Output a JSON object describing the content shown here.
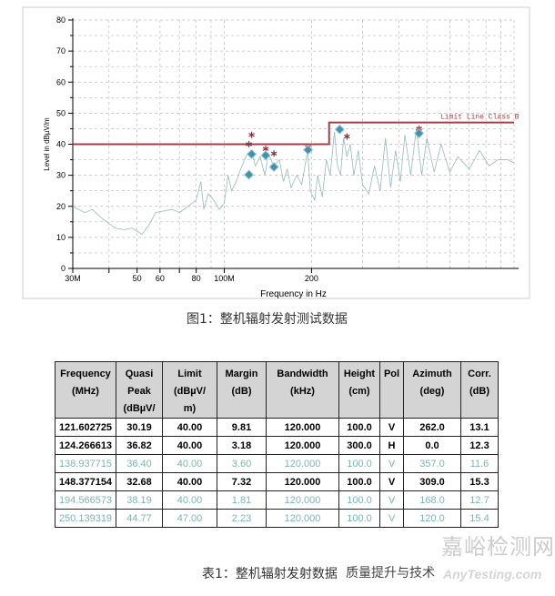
{
  "chart_data": {
    "type": "line",
    "xlabel": "Frequency in Hz",
    "ylabel": "Level in dBµV/m",
    "xscale": "log",
    "xlim": [
      30,
      1000
    ],
    "ylim": [
      0,
      80
    ],
    "grid": true,
    "xticks": [
      {
        "v": 30,
        "label": "30M"
      },
      {
        "v": 50,
        "label": "50"
      },
      {
        "v": 60,
        "label": "60"
      },
      {
        "v": 80,
        "label": "80"
      },
      {
        "v": 100,
        "label": "100M"
      },
      {
        "v": 200,
        "label": "200"
      }
    ],
    "yticks": [
      0,
      10,
      20,
      30,
      40,
      50,
      60,
      70,
      80
    ],
    "limit_line": {
      "name": "Limit Line Class B",
      "points": [
        [
          30,
          40
        ],
        [
          230,
          40
        ],
        [
          230,
          47
        ],
        [
          1000,
          47
        ]
      ],
      "color": "#a0404a"
    },
    "trace": {
      "color": "#9ab8b8",
      "points": [
        [
          30,
          20
        ],
        [
          33,
          18
        ],
        [
          35,
          19
        ],
        [
          38,
          16
        ],
        [
          42,
          13
        ],
        [
          45,
          12.5
        ],
        [
          48,
          13
        ],
        [
          52,
          11
        ],
        [
          55,
          14
        ],
        [
          58,
          18
        ],
        [
          62,
          18.5
        ],
        [
          66,
          19
        ],
        [
          70,
          18
        ],
        [
          75,
          20
        ],
        [
          80,
          22
        ],
        [
          83,
          28
        ],
        [
          85,
          19
        ],
        [
          88,
          24
        ],
        [
          92,
          22
        ],
        [
          96,
          19
        ],
        [
          100,
          21
        ],
        [
          103,
          30
        ],
        [
          106,
          25
        ],
        [
          110,
          28
        ],
        [
          115,
          33
        ],
        [
          120,
          37
        ],
        [
          124,
          38
        ],
        [
          128,
          33
        ],
        [
          133,
          36
        ],
        [
          138,
          30
        ],
        [
          142,
          37
        ],
        [
          148,
          33
        ],
        [
          155,
          35
        ],
        [
          160,
          28
        ],
        [
          165,
          32
        ],
        [
          170,
          26
        ],
        [
          178,
          30
        ],
        [
          185,
          27
        ],
        [
          194,
          38
        ],
        [
          198,
          25
        ],
        [
          205,
          22
        ],
        [
          210,
          30
        ],
        [
          218,
          23
        ],
        [
          225,
          35
        ],
        [
          232,
          30
        ],
        [
          240,
          44
        ],
        [
          246,
          33
        ],
        [
          252,
          30
        ],
        [
          258,
          42
        ],
        [
          265,
          36
        ],
        [
          272,
          40
        ],
        [
          280,
          30
        ],
        [
          290,
          38
        ],
        [
          300,
          27
        ],
        [
          315,
          24
        ],
        [
          330,
          33
        ],
        [
          345,
          25
        ],
        [
          360,
          42
        ],
        [
          375,
          26
        ],
        [
          390,
          38
        ],
        [
          405,
          28
        ],
        [
          420,
          43
        ],
        [
          440,
          30
        ],
        [
          460,
          45
        ],
        [
          480,
          30
        ],
        [
          500,
          42
        ],
        [
          530,
          31
        ],
        [
          560,
          40
        ],
        [
          600,
          31
        ],
        [
          640,
          36
        ],
        [
          700,
          32
        ],
        [
          760,
          38
        ],
        [
          820,
          33
        ],
        [
          880,
          35
        ],
        [
          950,
          35
        ],
        [
          1000,
          34
        ]
      ]
    },
    "quasi_peak_markers": {
      "color": "#4a8fa8",
      "points": [
        [
          121.6,
          30.19
        ],
        [
          124.27,
          36.82
        ],
        [
          138.94,
          36.4
        ],
        [
          148.38,
          32.68
        ],
        [
          194.57,
          38.19
        ],
        [
          250.14,
          44.77
        ],
        [
          470,
          43.5
        ]
      ]
    },
    "peak_markers": {
      "color": "#8a2a3a",
      "points": [
        [
          121.6,
          40
        ],
        [
          124.27,
          43
        ],
        [
          138.94,
          38.5
        ],
        [
          148.38,
          37
        ],
        [
          194.57,
          39
        ],
        [
          265,
          42.5
        ],
        [
          470,
          45
        ]
      ]
    }
  },
  "captions": {
    "figure": "图1：整机辐射发射测试数据",
    "table": "表1：整机辐射发射数据"
  },
  "table": {
    "headers": [
      [
        "Frequency",
        "(MHz)"
      ],
      [
        "Quasi",
        "Peak",
        "(dBµV/"
      ],
      [
        "Limit",
        "(dBµV/",
        "m)"
      ],
      [
        "Margin",
        "(dB)"
      ],
      [
        "Bandwidth",
        "(kHz)"
      ],
      [
        "Height",
        "(cm)"
      ],
      [
        "Pol"
      ],
      [
        "Azimuth",
        "(deg)"
      ],
      [
        "Corr.",
        "(dB)"
      ]
    ],
    "rows": [
      {
        "style": "black",
        "cells": [
          "121.602725",
          "30.19",
          "40.00",
          "9.81",
          "120.000",
          "100.0",
          "V",
          "262.0",
          "13.1"
        ]
      },
      {
        "style": "black",
        "cells": [
          "124.266613",
          "36.82",
          "40.00",
          "3.18",
          "120.000",
          "300.0",
          "H",
          "0.0",
          "12.3"
        ]
      },
      {
        "style": "teal",
        "cells": [
          "138.937715",
          "36.40",
          "40.00",
          "3.60",
          "120.000",
          "100.0",
          "V",
          "357.0",
          "11.6"
        ]
      },
      {
        "style": "black",
        "cells": [
          "148.377154",
          "32.68",
          "40.00",
          "7.32",
          "120.000",
          "100.0",
          "V",
          "309.0",
          "15.3"
        ]
      },
      {
        "style": "teal",
        "cells": [
          "194.566573",
          "38.19",
          "40.00",
          "1.81",
          "120.000",
          "100.0",
          "V",
          "168.0",
          "12.7"
        ]
      },
      {
        "style": "teal",
        "cells": [
          "250.139319",
          "44.77",
          "47.00",
          "2.23",
          "120.000",
          "100.0",
          "V",
          "120.0",
          "15.4"
        ]
      }
    ]
  },
  "watermark": {
    "cn": "嘉峪检测网",
    "en": "AnyTesting.com",
    "account": "质量提升与技术"
  }
}
